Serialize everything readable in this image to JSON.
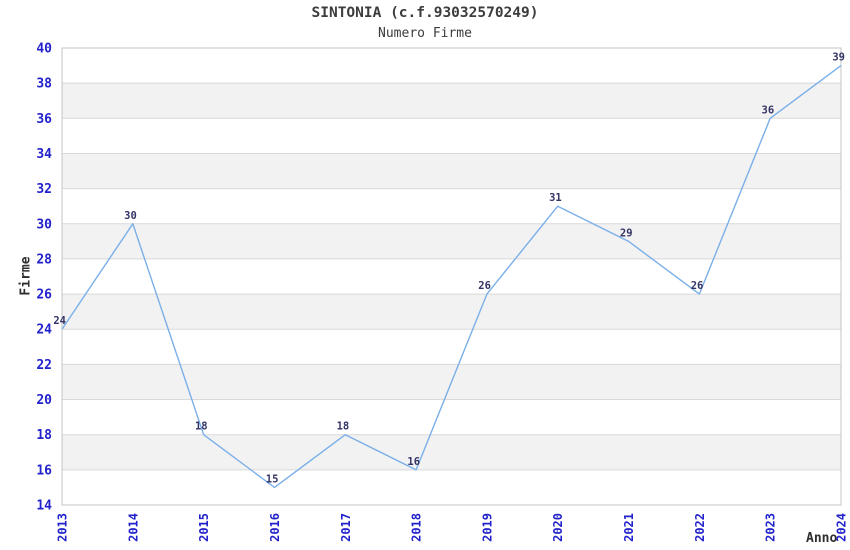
{
  "chart_data": {
    "type": "line",
    "title": "SINTONIA (c.f.93032570249)",
    "subtitle": "Numero Firme",
    "xlabel": "Anno",
    "ylabel": "Firme",
    "x": [
      "2013",
      "2014",
      "2015",
      "2016",
      "2017",
      "2018",
      "2019",
      "2020",
      "2021",
      "2022",
      "2023",
      "2024"
    ],
    "series": [
      {
        "name": "Numero Firme",
        "values": [
          24,
          30,
          18,
          15,
          18,
          16,
          26,
          31,
          29,
          26,
          36,
          39
        ]
      }
    ],
    "ylim": [
      14,
      40
    ],
    "ytick_step": 2,
    "grid": "horizontal, alternating shaded bands every 2 units",
    "legend_position": "none",
    "colors": {
      "line": "#7aafe9",
      "axis_tick_label": "#2222cc",
      "data_label": "#333366",
      "band_shaded": "#f2f2f2",
      "band_plain": "#ffffff",
      "gridline": "#d9d9d9",
      "plot_border": "#c4c4c4",
      "title_text": "#3c3c3c",
      "axis_title_text": "#2e2e2e"
    }
  }
}
